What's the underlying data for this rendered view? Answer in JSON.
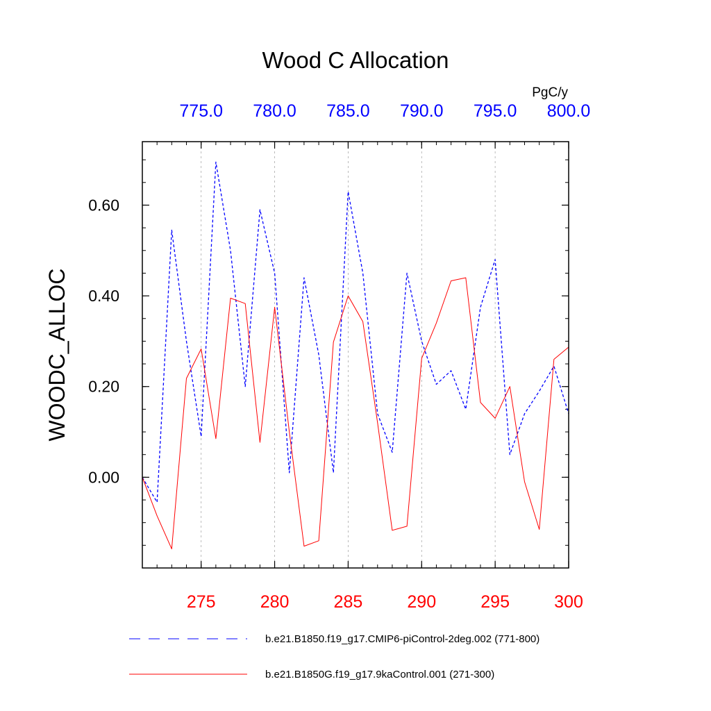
{
  "chart_data": {
    "type": "line",
    "title": "Wood C Allocation",
    "ylabel": "WOODC_ALLOC",
    "units": "PgC/y",
    "ylim": [
      -0.2,
      0.74
    ],
    "yticks": [
      0.0,
      0.2,
      0.4,
      0.6
    ],
    "ytick_labels": [
      "0.00",
      "0.20",
      "0.40",
      "0.60"
    ],
    "bottom_axis": {
      "xlim": [
        271,
        300
      ],
      "ticks": [
        275,
        280,
        285,
        290,
        295,
        300
      ],
      "tick_labels": [
        "275",
        "280",
        "285",
        "290",
        "295",
        "300"
      ],
      "color": "#ff0000"
    },
    "top_axis": {
      "xlim": [
        771,
        800
      ],
      "ticks": [
        775,
        780,
        785,
        790,
        795,
        800
      ],
      "tick_labels": [
        "775.0",
        "780.0",
        "785.0",
        "790.0",
        "795.0",
        "800.0"
      ],
      "color": "#0000ff"
    },
    "grid": "vertical dashed at major ticks",
    "series": [
      {
        "name": "b.e21.B1850.f19_g17.CMIP6-piControl-2deg.002 (771-800)",
        "axis": "top",
        "color": "#0000ff",
        "style": "dashed",
        "x": [
          771,
          772,
          773,
          774,
          775,
          776,
          777,
          778,
          779,
          780,
          781,
          782,
          783,
          784,
          785,
          786,
          787,
          788,
          789,
          790,
          791,
          792,
          793,
          794,
          795,
          796,
          797,
          798,
          799,
          800
        ],
        "values": [
          0.0,
          -0.055,
          0.545,
          0.3,
          0.09,
          0.695,
          0.5,
          0.2,
          0.59,
          0.45,
          0.01,
          0.44,
          0.27,
          0.01,
          0.63,
          0.45,
          0.14,
          0.055,
          0.45,
          0.3,
          0.205,
          0.235,
          0.15,
          0.375,
          0.48,
          0.05,
          0.14,
          0.19,
          0.245,
          0.14
        ]
      },
      {
        "name": "b.e21.B1850G.f19_g17.9kaControl.001 (271-300)",
        "axis": "bottom",
        "color": "#ff0000",
        "style": "solid",
        "x": [
          271,
          272,
          273,
          274,
          275,
          276,
          277,
          278,
          279,
          280,
          281,
          282,
          283,
          284,
          285,
          286,
          287,
          288,
          289,
          290,
          291,
          292,
          293,
          294,
          295,
          296,
          297,
          298,
          299,
          300
        ],
        "values": [
          0.0,
          -0.085,
          -0.158,
          0.218,
          0.283,
          0.085,
          0.395,
          0.383,
          0.077,
          0.375,
          0.1,
          -0.152,
          -0.14,
          0.298,
          0.4,
          0.343,
          0.12,
          -0.117,
          -0.108,
          0.262,
          0.34,
          0.433,
          0.44,
          0.165,
          0.13,
          0.2,
          -0.01,
          -0.115,
          0.26,
          0.287
        ]
      }
    ]
  },
  "legend": {
    "items": [
      {
        "label": "b.e21.B1850.f19_g17.CMIP6-piControl-2deg.002 (771-800)",
        "color": "#0000ff",
        "style": "dashed"
      },
      {
        "label": "b.e21.B1850G.f19_g17.9kaControl.001 (271-300)",
        "color": "#ff0000",
        "style": "solid"
      }
    ]
  }
}
